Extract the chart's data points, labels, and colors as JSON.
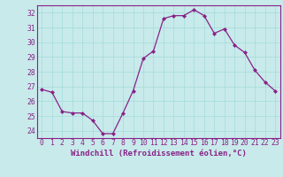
{
  "x": [
    0,
    1,
    2,
    3,
    4,
    5,
    6,
    7,
    8,
    9,
    10,
    11,
    12,
    13,
    14,
    15,
    16,
    17,
    18,
    19,
    20,
    21,
    22,
    23
  ],
  "y": [
    26.8,
    26.6,
    25.3,
    25.2,
    25.2,
    24.7,
    23.8,
    23.8,
    25.2,
    26.7,
    28.9,
    29.4,
    31.6,
    31.8,
    31.8,
    32.2,
    31.8,
    30.6,
    30.9,
    29.8,
    29.3,
    28.1,
    27.3,
    26.7
  ],
  "line_color": "#882288",
  "marker": "D",
  "marker_size": 2.0,
  "line_width": 0.9,
  "bg_color": "#c8eaea",
  "grid_color": "#aadddd",
  "xlabel": "Windchill (Refroidissement éolien,°C)",
  "xlabel_color": "#882288",
  "tick_color": "#882288",
  "spine_color": "#882288",
  "ylim": [
    23.5,
    32.5
  ],
  "yticks": [
    24,
    25,
    26,
    27,
    28,
    29,
    30,
    31,
    32
  ],
  "xlim": [
    -0.5,
    23.5
  ],
  "xticks": [
    0,
    1,
    2,
    3,
    4,
    5,
    6,
    7,
    8,
    9,
    10,
    11,
    12,
    13,
    14,
    15,
    16,
    17,
    18,
    19,
    20,
    21,
    22,
    23
  ],
  "font_size_label": 6.5,
  "font_size_tick": 5.8
}
